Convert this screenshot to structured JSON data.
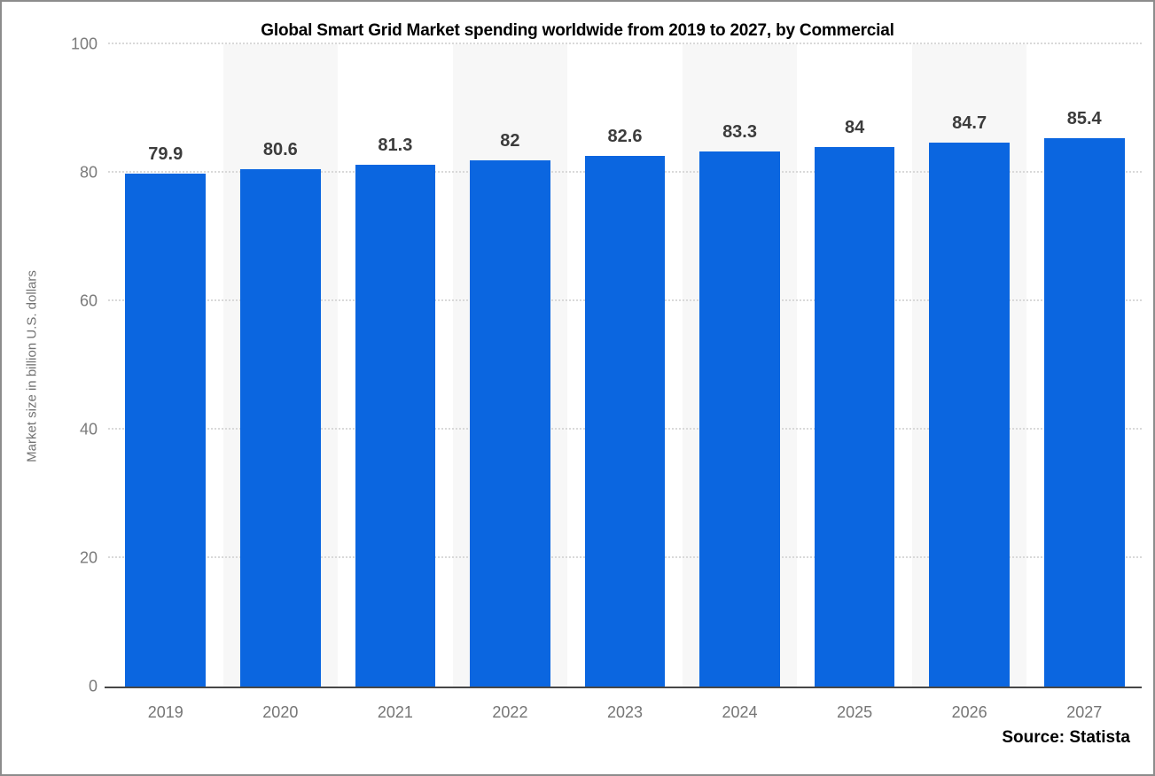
{
  "chart_data": {
    "type": "bar",
    "title": "Global Smart Grid Market spending worldwide from 2019 to 2027, by Commercial",
    "categories": [
      "2019",
      "2020",
      "2021",
      "2022",
      "2023",
      "2024",
      "2025",
      "2026",
      "2027"
    ],
    "values": [
      79.9,
      80.6,
      81.3,
      82,
      82.6,
      83.3,
      84,
      84.7,
      85.4
    ],
    "value_labels": [
      "79.9",
      "80.6",
      "81.3",
      "82",
      "82.6",
      "83.3",
      "84",
      "84.7",
      "85.4"
    ],
    "xlabel": "",
    "ylabel": "Market size in billion U.S. dollars",
    "ylim": [
      0,
      100
    ],
    "yticks": [
      0,
      20,
      40,
      60,
      80,
      100
    ],
    "grid": "horizontal-dotted",
    "legend": "none",
    "colors": {
      "bar": "#0b66e0",
      "column_band": "#f7f7f7",
      "gridline": "#d9d9d9",
      "axis_line": "#474747",
      "tick_label": "#7a7a7a",
      "value_label": "#3c3c3c",
      "frame_border": "#8c8c8c"
    }
  },
  "source": {
    "label": "Source: Statista"
  }
}
